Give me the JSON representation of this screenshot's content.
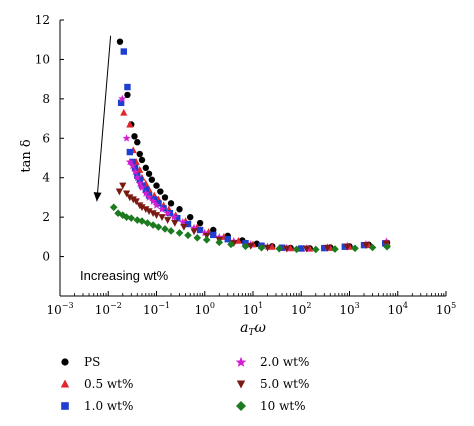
{
  "chart_data": {
    "type": "scatter",
    "title": "",
    "xlabel_main": "a",
    "xlabel_sub": "T",
    "xlabel_var": "ω",
    "ylabel": "tan δ",
    "xscale": "log",
    "xlim": [
      0.001,
      100000
    ],
    "ylim": [
      -2,
      12
    ],
    "xticks": [
      {
        "base": "10",
        "exp": "−3"
      },
      {
        "base": "10",
        "exp": "−2"
      },
      {
        "base": "10",
        "exp": "−1"
      },
      {
        "base": "10",
        "exp": "0"
      },
      {
        "base": "10",
        "exp": "1"
      },
      {
        "base": "10",
        "exp": "2"
      },
      {
        "base": "10",
        "exp": "3"
      },
      {
        "base": "10",
        "exp": "4"
      },
      {
        "base": "10",
        "exp": "5"
      }
    ],
    "yticks": [
      "0",
      "2",
      "4",
      "6",
      "8",
      "10",
      "12"
    ],
    "yvalues": [
      0,
      2,
      4,
      6,
      8,
      10,
      12
    ],
    "grid": false,
    "legend_position": "bottom",
    "annotation": {
      "text": "Increasing wt%",
      "arrow_from": [
        0.0112,
        11.2
      ],
      "arrow_to": [
        0.0058,
        2.8
      ]
    },
    "series": [
      {
        "name": "PS",
        "marker": "circle",
        "color": "#000000",
        "x": [
          0.0175,
          0.025,
          0.03,
          0.035,
          0.04,
          0.045,
          0.05,
          0.06,
          0.07,
          0.08,
          0.1,
          0.12,
          0.15,
          0.2,
          0.3,
          0.5,
          0.8,
          1.5,
          3,
          6,
          12,
          25,
          60,
          150,
          400,
          1000,
          2500,
          6000
        ],
        "y": [
          10.9,
          8.2,
          6.7,
          6.1,
          5.8,
          5.2,
          4.9,
          4.5,
          4.2,
          3.9,
          3.6,
          3.3,
          3.0,
          2.7,
          2.4,
          2.0,
          1.7,
          1.35,
          1.05,
          0.82,
          0.65,
          0.52,
          0.44,
          0.42,
          0.46,
          0.52,
          0.6,
          0.7
        ]
      },
      {
        "name": "0.5 wt%",
        "marker": "triangle-up",
        "color": "#e0262a",
        "x": [
          0.021,
          0.028,
          0.033,
          0.038,
          0.045,
          0.05,
          0.06,
          0.07,
          0.09,
          0.11,
          0.14,
          0.18,
          0.25,
          0.4,
          0.7,
          1.2,
          2.5,
          5,
          10,
          25,
          60,
          150,
          400,
          1000,
          2500,
          6000
        ],
        "y": [
          7.3,
          6.7,
          5.4,
          4.8,
          4.4,
          4.0,
          3.7,
          3.4,
          3.1,
          2.9,
          2.6,
          2.4,
          2.1,
          1.8,
          1.5,
          1.25,
          1.0,
          0.8,
          0.62,
          0.5,
          0.42,
          0.4,
          0.44,
          0.5,
          0.58,
          0.68
        ]
      },
      {
        "name": "1.0 wt%",
        "marker": "square",
        "color": "#1f3fd0",
        "x": [
          0.0185,
          0.021,
          0.025,
          0.028,
          0.032,
          0.036,
          0.04,
          0.045,
          0.05,
          0.06,
          0.07,
          0.09,
          0.11,
          0.14,
          0.19,
          0.27,
          0.45,
          0.8,
          1.5,
          3,
          7,
          15,
          40,
          100,
          300,
          800,
          2000,
          5500
        ],
        "y": [
          7.8,
          10.4,
          8.6,
          5.3,
          4.8,
          4.5,
          4.1,
          3.9,
          3.6,
          3.4,
          3.1,
          2.9,
          2.7,
          2.45,
          2.2,
          1.95,
          1.65,
          1.35,
          1.1,
          0.88,
          0.68,
          0.55,
          0.45,
          0.41,
          0.43,
          0.5,
          0.58,
          0.67
        ]
      },
      {
        "name": "2.0 wt%",
        "marker": "star",
        "color": "#d11fd1",
        "x": [
          0.0195,
          0.024,
          0.028,
          0.032,
          0.036,
          0.04,
          0.045,
          0.05,
          0.06,
          0.07,
          0.085,
          0.1,
          0.13,
          0.17,
          0.23,
          0.35,
          0.6,
          1,
          2,
          4,
          9,
          20,
          50,
          130,
          350,
          900,
          2200,
          5800
        ],
        "y": [
          8.0,
          6.0,
          4.8,
          4.6,
          4.3,
          4.0,
          3.7,
          3.5,
          3.2,
          3.0,
          2.8,
          2.6,
          2.4,
          2.2,
          2.0,
          1.75,
          1.45,
          1.2,
          0.98,
          0.78,
          0.62,
          0.5,
          0.43,
          0.42,
          0.46,
          0.54,
          0.63,
          0.76
        ]
      },
      {
        "name": "5.0 wt%",
        "marker": "triangle-down",
        "color": "#7a1a12",
        "x": [
          0.017,
          0.02,
          0.024,
          0.028,
          0.033,
          0.038,
          0.045,
          0.05,
          0.06,
          0.07,
          0.085,
          0.1,
          0.13,
          0.17,
          0.24,
          0.37,
          0.6,
          1.1,
          2,
          4,
          9,
          20,
          50,
          130,
          350,
          900,
          2200,
          5800
        ],
        "y": [
          3.3,
          3.6,
          3.2,
          3.0,
          2.9,
          2.8,
          2.6,
          2.5,
          2.4,
          2.3,
          2.2,
          2.1,
          2.0,
          1.85,
          1.7,
          1.5,
          1.28,
          1.05,
          0.85,
          0.68,
          0.54,
          0.45,
          0.4,
          0.4,
          0.44,
          0.5,
          0.58,
          0.66
        ]
      },
      {
        "name": "10 wt%",
        "marker": "diamond",
        "color": "#1c7a1f",
        "x": [
          0.013,
          0.016,
          0.02,
          0.024,
          0.03,
          0.04,
          0.05,
          0.065,
          0.085,
          0.11,
          0.15,
          0.2,
          0.3,
          0.45,
          0.7,
          1.1,
          2,
          3.5,
          7,
          15,
          35,
          80,
          200,
          500,
          1300,
          3000,
          6000
        ],
        "y": [
          2.5,
          2.2,
          2.1,
          2.0,
          1.95,
          1.85,
          1.8,
          1.7,
          1.6,
          1.5,
          1.4,
          1.3,
          1.2,
          1.08,
          0.95,
          0.85,
          0.72,
          0.62,
          0.52,
          0.45,
          0.4,
          0.37,
          0.36,
          0.38,
          0.42,
          0.46,
          0.5
        ]
      }
    ]
  }
}
